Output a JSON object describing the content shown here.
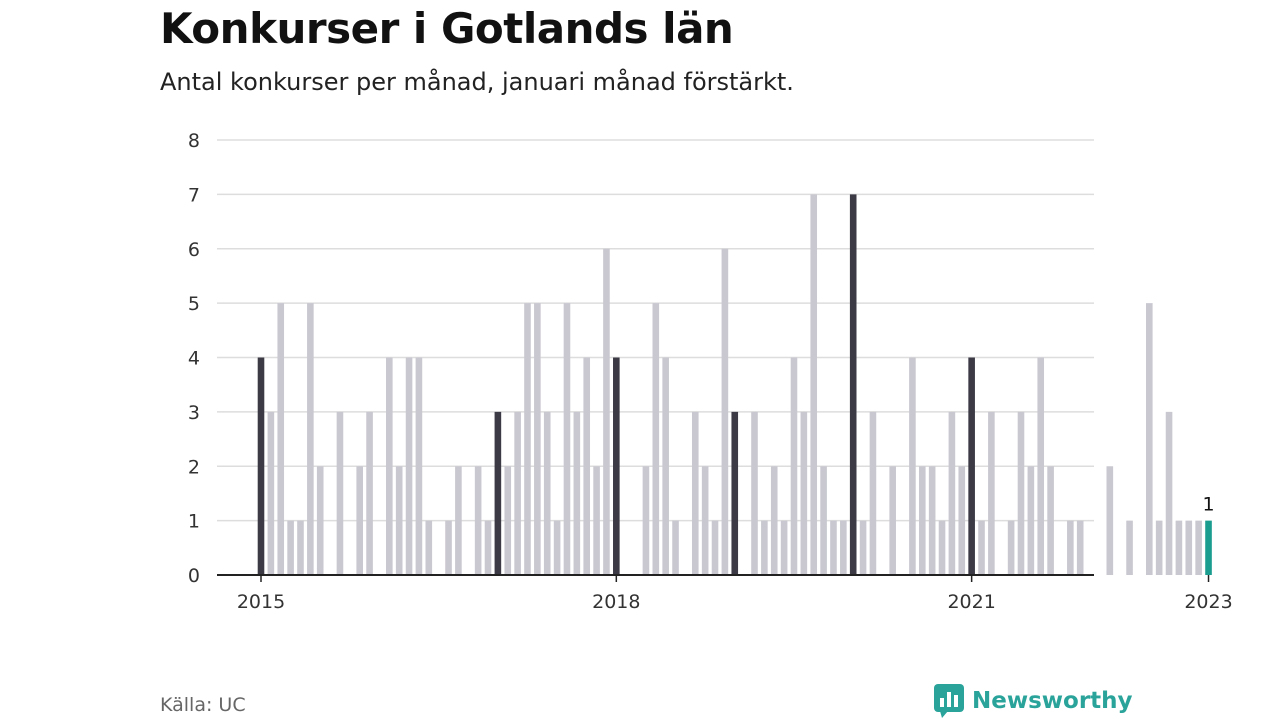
{
  "title": "Konkurser i Gotlands län",
  "subtitle": "Antal konkurser per månad, januari månad förstärkt.",
  "source": "Källa: UC",
  "brand": "Newsworthy",
  "colors": {
    "bar_default": "#c9c8d0",
    "bar_january": "#3b3a45",
    "bar_latest": "#1a9c8f",
    "grid": "#dddddd",
    "axis": "#222222",
    "brand": "#2aa39a"
  },
  "chart_data": {
    "type": "bar",
    "start": "2015-01",
    "values": [
      4,
      3,
      5,
      1,
      1,
      5,
      2,
      0,
      3,
      0,
      2,
      3,
      0,
      4,
      2,
      4,
      4,
      1,
      0,
      1,
      2,
      0,
      2,
      1,
      3,
      2,
      3,
      5,
      5,
      3,
      1,
      5,
      3,
      4,
      2,
      6,
      4,
      0,
      0,
      2,
      5,
      4,
      1,
      0,
      3,
      2,
      1,
      6,
      3,
      0,
      3,
      1,
      2,
      1,
      4,
      3,
      7,
      2,
      1,
      1,
      7,
      1,
      3,
      0,
      2,
      0,
      4,
      2,
      2,
      1,
      3,
      2,
      4,
      1,
      3,
      0,
      1,
      3,
      2,
      4,
      2,
      0,
      1,
      1,
      0,
      0,
      2,
      0,
      1,
      0,
      5,
      1,
      3,
      1,
      1,
      1,
      1
    ],
    "latest_label": "1",
    "highlight": "January bars dark, latest month teal",
    "y_ticks": [
      "0",
      "1",
      "2",
      "3",
      "4",
      "5",
      "6",
      "7",
      "8"
    ],
    "x_tick_labels": [
      "2015",
      "2018",
      "2021",
      "2023"
    ],
    "ylim": [
      0,
      8
    ],
    "grid": true,
    "xlabel": "",
    "ylabel": ""
  }
}
